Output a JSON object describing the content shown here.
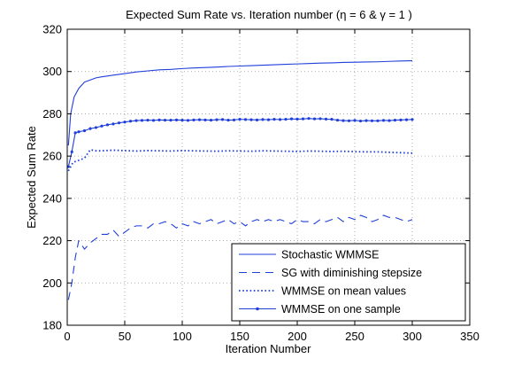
{
  "chart_data": {
    "type": "line",
    "title": "Expected Sum Rate vs. Iteration number (η = 6 & γ = 1 )",
    "xlabel": "Iteration Number",
    "ylabel": "Expected Sum Rate",
    "xlim": [
      0,
      350
    ],
    "ylim": [
      180,
      320
    ],
    "xticks": [
      0,
      50,
      100,
      150,
      200,
      250,
      300,
      350
    ],
    "yticks": [
      180,
      200,
      220,
      240,
      260,
      280,
      300,
      320
    ],
    "grid": true,
    "legend_position": "bottom-right",
    "color": "#1f3fd9",
    "series": [
      {
        "name": "Stochastic WMMSE",
        "style": "solid",
        "x": [
          1,
          3,
          6,
          10,
          15,
          20,
          25,
          30,
          40,
          50,
          60,
          70,
          80,
          90,
          100,
          110,
          120,
          130,
          140,
          150,
          160,
          170,
          180,
          190,
          200,
          210,
          220,
          230,
          240,
          250,
          260,
          270,
          280,
          290,
          300
        ],
        "y": [
          265,
          280,
          288,
          292,
          295,
          296,
          297,
          297.5,
          298.3,
          299,
          299.8,
          300.3,
          300.8,
          301,
          301.4,
          301.7,
          301.9,
          302.1,
          302.4,
          302.6,
          302.8,
          303,
          303.2,
          303.4,
          303.6,
          303.8,
          304,
          304.1,
          304.3,
          304.4,
          304.5,
          304.6,
          304.8,
          305,
          305.1
        ]
      },
      {
        "name": "SG with diminishing stepsize",
        "style": "dashed",
        "x": [
          1,
          4,
          7,
          10,
          15,
          20,
          25,
          30,
          35,
          40,
          45,
          50,
          55,
          60,
          65,
          70,
          75,
          80,
          85,
          90,
          95,
          100,
          105,
          110,
          115,
          120,
          125,
          130,
          135,
          140,
          145,
          150,
          155,
          160,
          165,
          170,
          175,
          180,
          185,
          190,
          195,
          200,
          205,
          210,
          215,
          220,
          225,
          230,
          235,
          240,
          245,
          250,
          255,
          260,
          265,
          270,
          275,
          280,
          285,
          290,
          295,
          300
        ],
        "y": [
          192,
          200,
          212,
          220,
          216,
          219,
          221,
          223,
          223,
          225,
          222,
          224,
          226,
          227,
          227,
          226,
          228,
          228,
          229,
          228,
          226,
          228,
          227,
          229,
          228,
          229,
          230,
          228,
          229,
          230,
          228,
          229,
          227,
          229,
          230,
          229,
          230,
          229,
          230,
          229,
          228,
          230,
          229,
          229,
          228,
          230,
          229,
          230,
          231,
          229,
          231,
          230,
          232,
          231,
          229,
          230,
          232,
          231,
          231,
          230,
          229,
          230
        ]
      },
      {
        "name": "WMMSE on mean values",
        "style": "dotted",
        "x": [
          1,
          5,
          10,
          15,
          20,
          25,
          30,
          40,
          50,
          60,
          70,
          80,
          90,
          100,
          110,
          120,
          130,
          140,
          150,
          160,
          170,
          180,
          190,
          200,
          210,
          220,
          230,
          240,
          250,
          260,
          270,
          280,
          290,
          300
        ],
        "y": [
          253,
          257,
          258,
          259,
          263,
          262.5,
          262.5,
          262.8,
          262.6,
          262.4,
          262.6,
          262.5,
          262.4,
          262.6,
          262.5,
          262.4,
          262.3,
          262.5,
          262.4,
          262.3,
          262.5,
          262.4,
          262.3,
          262.2,
          262.4,
          262.3,
          262.2,
          262.3,
          262.1,
          262,
          262,
          261.8,
          261.6,
          261.4
        ]
      },
      {
        "name": "WMMSE on one sample",
        "style": "solid-markers",
        "x": [
          1,
          4,
          7,
          10,
          15,
          20,
          25,
          30,
          35,
          40,
          45,
          50,
          55,
          60,
          65,
          70,
          75,
          80,
          85,
          90,
          95,
          100,
          105,
          110,
          115,
          120,
          125,
          130,
          135,
          140,
          145,
          150,
          155,
          160,
          165,
          170,
          175,
          180,
          185,
          190,
          195,
          200,
          205,
          210,
          215,
          220,
          225,
          230,
          235,
          240,
          245,
          250,
          255,
          260,
          265,
          270,
          275,
          280,
          285,
          290,
          295,
          300
        ],
        "y": [
          255,
          262,
          271,
          271.5,
          272,
          273,
          273.5,
          274.2,
          274.8,
          275.2,
          275.7,
          276.1,
          276.5,
          276.8,
          276.9,
          277,
          276.9,
          277.1,
          277,
          277,
          277.1,
          277,
          276.9,
          277.1,
          277.2,
          277.1,
          277,
          277.2,
          277.3,
          277,
          277.1,
          277.4,
          277.3,
          277.2,
          277.1,
          277.3,
          277.2,
          277.4,
          277.3,
          277.4,
          277.6,
          277.5,
          277.6,
          277.8,
          277.6,
          277.7,
          277.5,
          277.4,
          277,
          276.8,
          276.7,
          276.9,
          276.6,
          276.8,
          276.7,
          276.7,
          276.9,
          276.8,
          277,
          277.1,
          277.2,
          277.3
        ]
      }
    ]
  }
}
